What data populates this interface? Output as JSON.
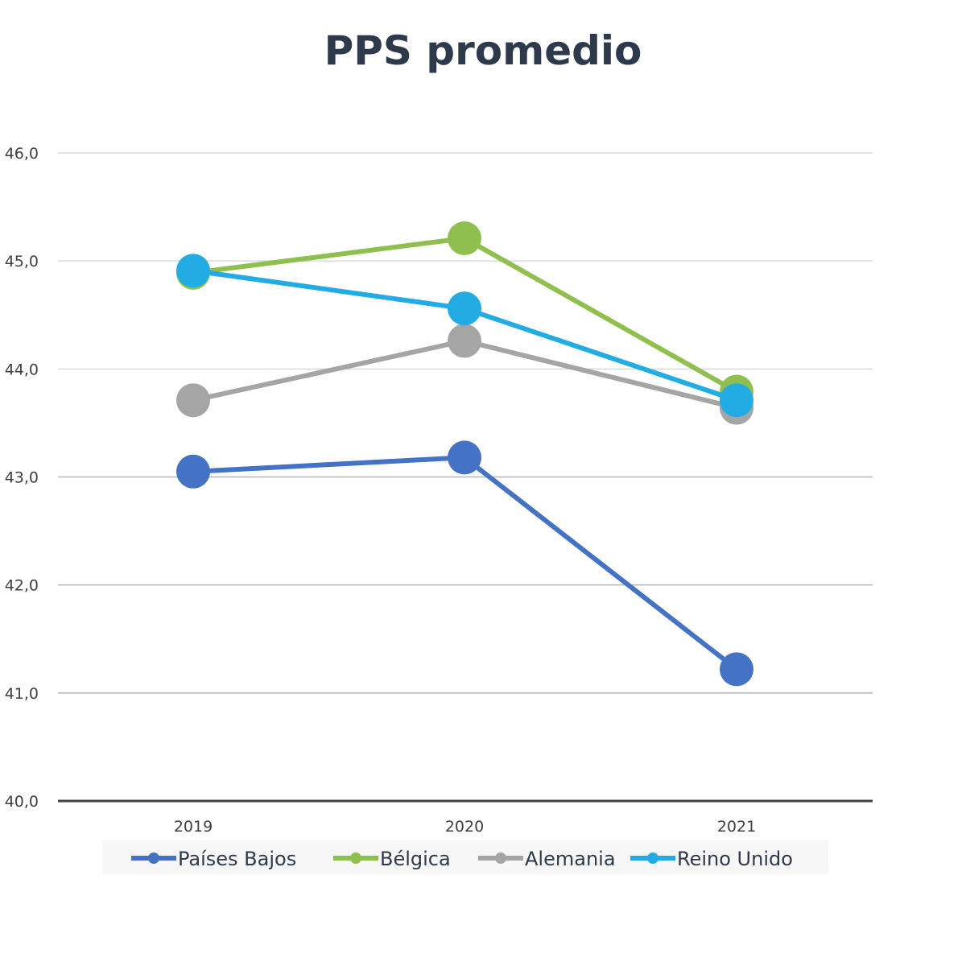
{
  "chart_data": {
    "type": "line",
    "title": "PPS promedio",
    "xlabel": "",
    "ylabel": "",
    "categories": [
      "2019",
      "2020",
      "2021"
    ],
    "ylim": [
      40.0,
      46.0
    ],
    "yticks": [
      "40,0",
      "41,0",
      "42,0",
      "43,0",
      "44,0",
      "45,0",
      "46,0"
    ],
    "grid": true,
    "legend_position": "bottom",
    "series": [
      {
        "name": "Países Bajos",
        "color": "#4472c4",
        "values": [
          43.05,
          43.18,
          41.22
        ]
      },
      {
        "name": "Bélgica",
        "color": "#8fc04f",
        "values": [
          44.89,
          45.21,
          43.79
        ]
      },
      {
        "name": "Alemania",
        "color": "#a5a5a5",
        "values": [
          43.71,
          44.26,
          43.64
        ]
      },
      {
        "name": "Reino Unido",
        "color": "#22ace3",
        "values": [
          44.91,
          44.56,
          43.71
        ]
      }
    ]
  }
}
